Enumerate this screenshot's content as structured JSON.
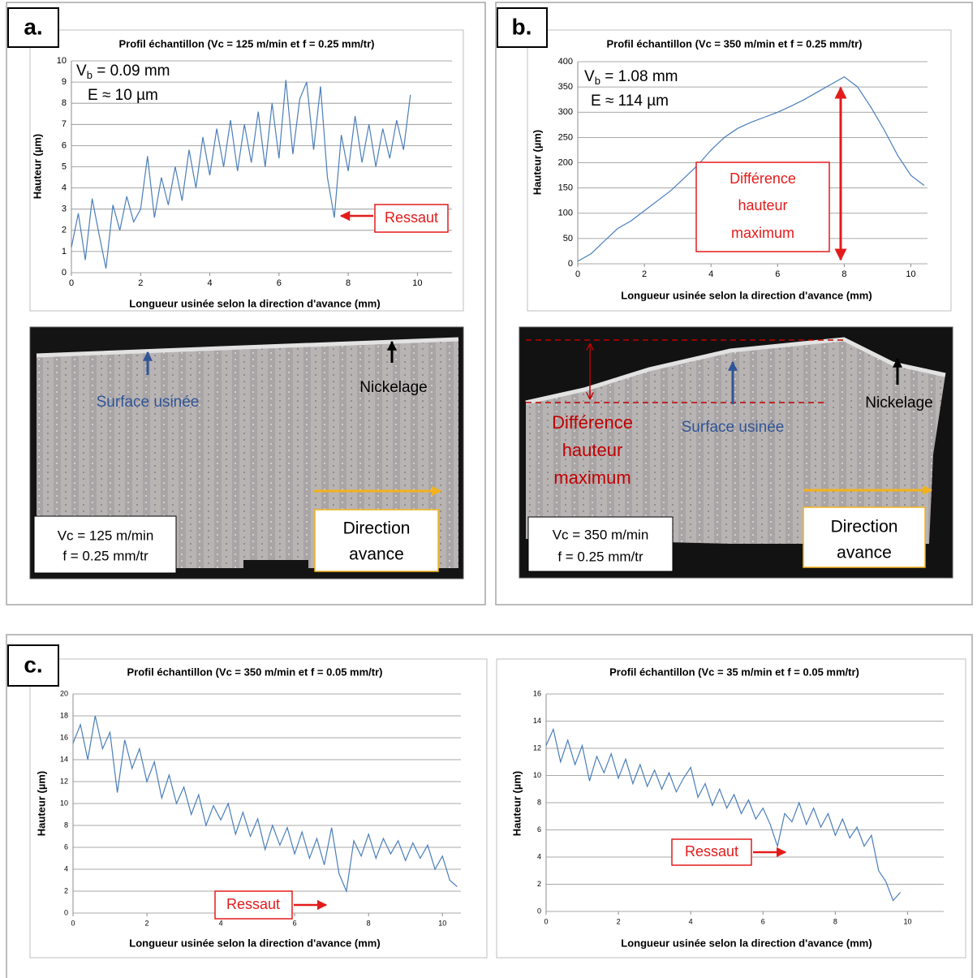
{
  "chart_data": [
    {
      "type": "line",
      "title": "Profil échantillon (Vc = 125 m/min et f = 0.25 mm/tr)",
      "xlabel": "Longueur usinée selon la direction d'avance (mm)",
      "ylabel": "Hauteur (µm)",
      "x": [
        0,
        0.2,
        0.4,
        0.6,
        0.8,
        1.0,
        1.2,
        1.4,
        1.6,
        1.8,
        2.0,
        2.2,
        2.4,
        2.6,
        2.8,
        3.0,
        3.2,
        3.4,
        3.6,
        3.8,
        4.0,
        4.2,
        4.4,
        4.6,
        4.8,
        5.0,
        5.2,
        5.4,
        5.6,
        5.8,
        6.0,
        6.2,
        6.4,
        6.6,
        6.8,
        7.0,
        7.2,
        7.4,
        7.6,
        7.8,
        8.0,
        8.2,
        8.4,
        8.6,
        8.8,
        9.0,
        9.2,
        9.4,
        9.6,
        9.8
      ],
      "series": [
        {
          "color": "#4a7ebb",
          "values": [
            1.2,
            2.8,
            0.6,
            3.5,
            1.8,
            0.2,
            3.2,
            2.0,
            3.6,
            2.4,
            3.0,
            5.5,
            2.6,
            4.5,
            3.2,
            5.0,
            3.4,
            5.8,
            4.0,
            6.4,
            4.6,
            6.8,
            5.0,
            7.2,
            4.8,
            7.0,
            5.2,
            7.6,
            5.0,
            8.0,
            5.4,
            9.1,
            5.6,
            8.2,
            9.0,
            5.8,
            8.8,
            4.5,
            2.6,
            6.5,
            4.8,
            7.4,
            5.2,
            7.0,
            5.0,
            6.8,
            5.4,
            7.2,
            5.8,
            8.4
          ]
        }
      ],
      "xlim": [
        0,
        11
      ],
      "xticks": [
        0,
        2,
        4,
        6,
        8,
        10
      ],
      "ylim": [
        0,
        10
      ],
      "yticks": [
        0,
        1,
        2,
        3,
        4,
        5,
        6,
        7,
        8,
        9,
        10
      ],
      "grid": true,
      "annotations": {
        "vb": {
          "symbol": "V",
          "subscript": "b",
          "rest": " = 0.09 mm"
        },
        "e": "E ≈ 10 µm",
        "note": [
          "Ressaut"
        ]
      }
    },
    {
      "type": "line",
      "title": "Profil échantillon (Vc = 350 m/min et f = 0.25 mm/tr)",
      "xlabel": "Longueur usinée selon la direction d'avance (mm)",
      "ylabel": "Hauteur (µm)",
      "x": [
        0,
        0.4,
        0.8,
        1.2,
        1.6,
        2.0,
        2.4,
        2.8,
        3.2,
        3.6,
        4.0,
        4.4,
        4.8,
        5.2,
        5.6,
        6.0,
        6.4,
        6.8,
        7.2,
        7.6,
        8.0,
        8.4,
        8.8,
        9.2,
        9.6,
        10.0,
        10.4
      ],
      "series": [
        {
          "color": "#4a7ebb",
          "values": [
            5,
            20,
            45,
            70,
            85,
            105,
            125,
            145,
            170,
            195,
            225,
            250,
            268,
            280,
            290,
            300,
            312,
            325,
            340,
            355,
            370,
            350,
            310,
            265,
            215,
            175,
            155
          ]
        }
      ],
      "xlim": [
        0,
        10.5
      ],
      "xticks": [
        0,
        2,
        4,
        6,
        8,
        10
      ],
      "ylim": [
        0,
        400
      ],
      "yticks": [
        0,
        50,
        100,
        150,
        200,
        250,
        300,
        350,
        400
      ],
      "grid": true,
      "annotations": {
        "vb": {
          "symbol": "V",
          "subscript": "b",
          "rest": " = 1.08 mm"
        },
        "e": "E ≈ 114 µm",
        "note": [
          "Différence",
          "hauteur",
          "maximum"
        ]
      }
    },
    {
      "type": "line",
      "title": "Profil échantillon (Vc = 350 m/min et f = 0.05 mm/tr)",
      "xlabel": "Longueur usinée selon la direction d'avance (mm)",
      "ylabel": "Hauteur (µm)",
      "x": [
        0,
        0.2,
        0.4,
        0.6,
        0.8,
        1.0,
        1.2,
        1.4,
        1.6,
        1.8,
        2.0,
        2.2,
        2.4,
        2.6,
        2.8,
        3.0,
        3.2,
        3.4,
        3.6,
        3.8,
        4.0,
        4.2,
        4.4,
        4.6,
        4.8,
        5.0,
        5.2,
        5.4,
        5.6,
        5.8,
        6.0,
        6.2,
        6.4,
        6.6,
        6.8,
        7.0,
        7.2,
        7.4,
        7.6,
        7.8,
        8.0,
        8.2,
        8.4,
        8.6,
        8.8,
        9.0,
        9.2,
        9.4,
        9.6,
        9.8,
        10.0,
        10.2,
        10.4
      ],
      "series": [
        {
          "color": "#4a7ebb",
          "values": [
            15.5,
            17.2,
            14.0,
            18.0,
            15.0,
            16.5,
            11.0,
            15.8,
            13.2,
            15.0,
            12.0,
            13.8,
            10.5,
            12.6,
            10.0,
            11.5,
            9.0,
            10.8,
            8.0,
            9.8,
            8.5,
            10.0,
            7.2,
            9.2,
            7.0,
            8.6,
            5.8,
            8.0,
            6.2,
            7.8,
            5.4,
            7.4,
            5.0,
            6.8,
            4.4,
            7.8,
            3.6,
            2.0,
            6.6,
            5.2,
            7.2,
            5.0,
            6.8,
            5.4,
            6.6,
            4.8,
            6.4,
            5.0,
            6.2,
            4.0,
            5.2,
            3.0,
            2.4
          ]
        }
      ],
      "xlim": [
        0,
        10.5
      ],
      "xticks": [
        0,
        2,
        4,
        6,
        8,
        10
      ],
      "ylim": [
        0,
        20
      ],
      "yticks": [
        0,
        2,
        4,
        6,
        8,
        10,
        12,
        14,
        16,
        18,
        20
      ],
      "grid": true,
      "annotations": {
        "note": [
          "Ressaut"
        ]
      }
    },
    {
      "type": "line",
      "title": "Profil échantillon (Vc = 35 m/min et f = 0.05 mm/tr)",
      "xlabel": "Longueur usinée selon la direction d'avance (mm)",
      "ylabel": "Hauteur (µm)",
      "x": [
        0,
        0.2,
        0.4,
        0.6,
        0.8,
        1.0,
        1.2,
        1.4,
        1.6,
        1.8,
        2.0,
        2.2,
        2.4,
        2.6,
        2.8,
        3.0,
        3.2,
        3.4,
        3.6,
        3.8,
        4.0,
        4.2,
        4.4,
        4.6,
        4.8,
        5.0,
        5.2,
        5.4,
        5.6,
        5.8,
        6.0,
        6.2,
        6.4,
        6.6,
        6.8,
        7.0,
        7.2,
        7.4,
        7.6,
        7.8,
        8.0,
        8.2,
        8.4,
        8.6,
        8.8,
        9.0,
        9.2,
        9.4,
        9.6,
        9.8
      ],
      "series": [
        {
          "color": "#4a7ebb",
          "values": [
            12.2,
            13.4,
            11.0,
            12.6,
            10.8,
            12.2,
            9.6,
            11.4,
            10.2,
            11.6,
            9.8,
            11.2,
            9.4,
            10.8,
            9.2,
            10.4,
            9.0,
            10.2,
            8.8,
            9.8,
            10.6,
            8.4,
            9.4,
            7.8,
            9.0,
            7.6,
            8.6,
            7.2,
            8.2,
            6.8,
            7.6,
            6.4,
            4.8,
            7.2,
            6.6,
            8.0,
            6.4,
            7.6,
            6.2,
            7.2,
            5.6,
            6.8,
            5.4,
            6.2,
            4.8,
            5.6,
            3.0,
            2.2,
            0.8,
            1.4
          ]
        }
      ],
      "xlim": [
        0,
        11
      ],
      "xticks": [
        0,
        2,
        4,
        6,
        8,
        10
      ],
      "ylim": [
        0,
        16
      ],
      "yticks": [
        0,
        2,
        4,
        6,
        8,
        10,
        12,
        14,
        16
      ],
      "grid": true,
      "annotations": {
        "note": [
          "Ressaut"
        ]
      }
    }
  ],
  "panel_labels": [
    "a.",
    "b.",
    "c."
  ],
  "photos": [
    {
      "surface": "Surface usinée",
      "coating": "Nickelage",
      "conditions": [
        "Vc = 125 m/min",
        "f = 0.25 mm/tr"
      ],
      "direction": [
        "Direction",
        "avance"
      ]
    },
    {
      "surface": "Surface usinée",
      "coating": "Nickelage",
      "conditions": [
        "Vc = 350 m/min",
        "f = 0.25 mm/tr"
      ],
      "direction": [
        "Direction",
        "avance"
      ],
      "height_diff": [
        "Différence",
        "hauteur",
        "maximum"
      ]
    }
  ]
}
